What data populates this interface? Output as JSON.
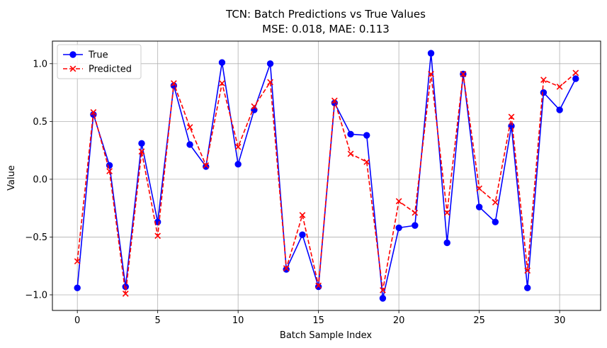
{
  "chart_data": {
    "type": "line",
    "title": "TCN: Batch Predictions vs True Values",
    "subtitle": "MSE: 0.018, MAE: 0.113",
    "xlabel": "Batch Sample Index",
    "ylabel": "Value",
    "xlim": [
      -1.55,
      32.55
    ],
    "ylim": [
      -1.135,
      1.195
    ],
    "x_ticks": [
      0,
      5,
      10,
      15,
      20,
      25,
      30
    ],
    "y_ticks": [
      -1.0,
      -0.5,
      0.0,
      0.5,
      1.0
    ],
    "y_tick_labels": [
      "−1.0",
      "−0.5",
      "0.0",
      "0.5",
      "1.0"
    ],
    "grid": true,
    "legend_position": "top-left",
    "x": [
      0,
      1,
      2,
      3,
      4,
      5,
      6,
      7,
      8,
      9,
      10,
      11,
      12,
      13,
      14,
      15,
      16,
      17,
      18,
      19,
      20,
      21,
      22,
      23,
      24,
      25,
      26,
      27,
      28,
      29,
      30,
      31
    ],
    "series": [
      {
        "name": "True",
        "color": "#0000ff",
        "marker": "circle",
        "linestyle": "solid",
        "values": [
          -0.94,
          0.56,
          0.12,
          -0.93,
          0.31,
          -0.37,
          0.81,
          0.3,
          0.11,
          1.01,
          0.13,
          0.6,
          1.0,
          -0.78,
          -0.48,
          -0.93,
          0.66,
          0.39,
          0.38,
          -1.03,
          -0.42,
          -0.4,
          1.09,
          -0.55,
          0.91,
          -0.24,
          -0.37,
          0.46,
          -0.94,
          0.75,
          0.6,
          0.87
        ]
      },
      {
        "name": "Predicted",
        "color": "#ff0000",
        "marker": "x",
        "linestyle": "dashed",
        "values": [
          -0.71,
          0.58,
          0.07,
          -0.99,
          0.24,
          -0.49,
          0.83,
          0.45,
          0.12,
          0.83,
          0.28,
          0.63,
          0.84,
          -0.77,
          -0.31,
          -0.92,
          0.68,
          0.22,
          0.15,
          -0.96,
          -0.19,
          -0.29,
          0.91,
          -0.29,
          0.91,
          -0.08,
          -0.2,
          0.54,
          -0.79,
          0.86,
          0.8,
          0.92
        ]
      }
    ]
  }
}
